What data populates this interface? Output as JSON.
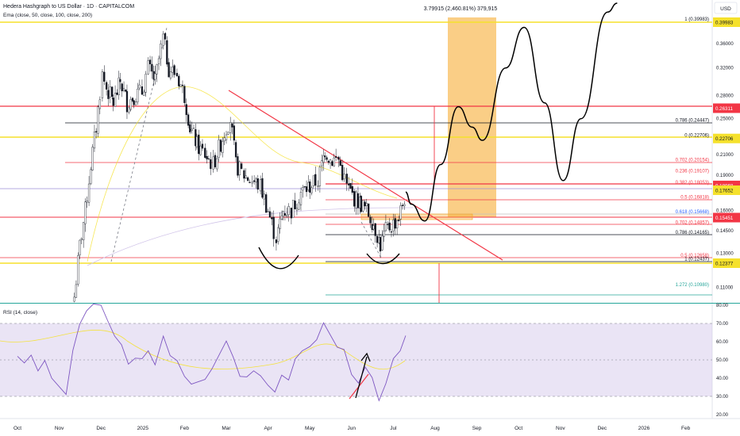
{
  "header": {
    "title": "Hedera Hashgraph to US Dollar · 1D · CAPITALCOM",
    "indicator": "Ema (close, 50, close, 100, close, 200)",
    "rsi_label": "RSI (14, close)",
    "currency": "USD",
    "measure_label": "3.79915 (2,460.81%) 379,915"
  },
  "colors": {
    "candle_up": "#26a69a",
    "candle_down": "#ef5350",
    "red_level": "#f23645",
    "yellow_level": "#f5e12c",
    "fib_gray": "#787b86",
    "projection_box": "#f5a623",
    "rsi_line": "#7e57c2",
    "rsi_band": "#d1c4e9"
  },
  "chart_data": [
    {
      "type": "candlestick",
      "title": "Hedera Hashgraph to US Dollar · 1D · CAPITALCOM",
      "y_scale": "log",
      "ylim": [
        0.1,
        0.5
      ],
      "y_ticks": [
        "0.36000",
        "0.32000",
        "0.28000",
        "0.25000",
        "0.23000",
        "0.21000",
        "0.19000",
        "0.16000",
        "0.14500",
        "0.13000",
        "0.11000"
      ],
      "x_ticks": [
        "Oct",
        "Nov",
        "Dec",
        "2025",
        "Feb",
        "Mar",
        "Apr",
        "May",
        "Jun",
        "Jul",
        "Aug",
        "Sep",
        "Oct",
        "Nov",
        "Dec",
        "2026",
        "Feb"
      ],
      "close_series": [
        [
          "Nov 12",
          0.105
        ],
        [
          "Nov 16",
          0.135
        ],
        [
          "Nov 20",
          0.16
        ],
        [
          "Nov 24",
          0.2
        ],
        [
          "Nov 28",
          0.24
        ],
        [
          "Dec 2",
          0.31
        ],
        [
          "Dec 5",
          0.29
        ],
        [
          "Dec 10",
          0.27
        ],
        [
          "Dec 15",
          0.3
        ],
        [
          "Dec 20",
          0.27
        ],
        [
          "Dec 25",
          0.28
        ],
        [
          "Dec 31",
          0.285
        ],
        [
          "Jan 5",
          0.32
        ],
        [
          "Jan 10",
          0.3
        ],
        [
          "Jan 16",
          0.37
        ],
        [
          "Jan 20",
          0.32
        ],
        [
          "Jan 26",
          0.31
        ],
        [
          "Feb 1",
          0.28
        ],
        [
          "Feb 5",
          0.24
        ],
        [
          "Feb 10",
          0.22
        ],
        [
          "Feb 16",
          0.21
        ],
        [
          "Feb 22",
          0.2
        ],
        [
          "Mar 1",
          0.24
        ],
        [
          "Mar 4",
          0.25
        ],
        [
          "Mar 8",
          0.2
        ],
        [
          "Mar 14",
          0.19
        ],
        [
          "Mar 20",
          0.185
        ],
        [
          "Mar 26",
          0.18
        ],
        [
          "Apr 1",
          0.16
        ],
        [
          "Apr 7",
          0.14
        ],
        [
          "Apr 12",
          0.16
        ],
        [
          "Apr 18",
          0.16
        ],
        [
          "Apr 25",
          0.175
        ],
        [
          "May 1",
          0.18
        ],
        [
          "May 7",
          0.185
        ],
        [
          "May 12",
          0.215
        ],
        [
          "May 16",
          0.205
        ],
        [
          "May 22",
          0.205
        ],
        [
          "May 28",
          0.18
        ],
        [
          "Jun 3",
          0.17
        ],
        [
          "Jun 8",
          0.165
        ],
        [
          "Jun 12",
          0.16
        ],
        [
          "Jun 17",
          0.15
        ],
        [
          "Jun 22",
          0.135
        ],
        [
          "Jun 26",
          0.145
        ],
        [
          "Jul 1",
          0.15
        ],
        [
          "Jul 5",
          0.155
        ],
        [
          "Jul 10",
          0.175
        ]
      ],
      "projection_path": [
        [
          "Jul 14",
          0.165
        ],
        [
          "Jul 24",
          0.152
        ],
        [
          "Aug 5",
          0.2
        ],
        [
          "Aug 18",
          0.265
        ],
        [
          "Aug 28",
          0.24
        ],
        [
          "Sep 5",
          0.225
        ],
        [
          "Sep 22",
          0.32
        ],
        [
          "Oct 5",
          0.39
        ],
        [
          "Oct 20",
          0.27
        ],
        [
          "Nov 3",
          0.185
        ],
        [
          "Nov 16",
          0.25
        ],
        [
          "Dec 5",
          0.42
        ],
        [
          "Dec 12",
          0.5
        ]
      ],
      "price_labels": [
        {
          "value": "0.39983",
          "style": "yellow"
        },
        {
          "value": "0.26311",
          "style": "red"
        },
        {
          "value": "0.22706",
          "style": "yellow"
        },
        {
          "value": "0.18068",
          "style": "red"
        },
        {
          "value": "0.17652",
          "style": "yellow"
        },
        {
          "value": "0.15451",
          "style": "red"
        },
        {
          "value": "0.12377",
          "style": "yellow"
        }
      ],
      "fib_labels": [
        {
          "text": "1 (0.39983)",
          "value": 0.39983
        },
        {
          "text": "0.786 (0.24447)",
          "value": 0.24447
        },
        {
          "text": "0 (0.22706)",
          "value": 0.22706
        },
        {
          "text": "0.702 (0.20154)",
          "value": 0.20154
        },
        {
          "text": "0.236 (0.19107)",
          "value": 0.19107
        },
        {
          "text": "0.382 (0.18053)",
          "value": 0.18053
        },
        {
          "text": "0.5 (0.16818)",
          "value": 0.16818
        },
        {
          "text": "0.618 (0.15668)",
          "value": 0.15668
        },
        {
          "text": "0.702 (0.14857)",
          "value": 0.14857
        },
        {
          "text": "0.786 (0.14165)",
          "value": 0.14165
        },
        {
          "text": "0.5 (0.12658)",
          "value": 0.12658
        },
        {
          "text": "1 (0.12437)",
          "value": 0.12437
        },
        {
          "text": "1.272 (0.10980)",
          "value": 0.1098
        }
      ],
      "annotations": [
        "3.79915 (2,460.81%) 379,915"
      ]
    },
    {
      "type": "line",
      "title": "RSI (14, close)",
      "ylim": [
        20,
        80
      ],
      "y_ticks": [
        "80.00",
        "70.00",
        "60.00",
        "50.00",
        "40.00",
        "30.00",
        "20.00"
      ],
      "bands": [
        30,
        70
      ],
      "series": [
        {
          "values": [
            [
              "Oct 1",
              52
            ],
            [
              "Oct 6",
              48
            ],
            [
              "Oct 11",
              53
            ],
            [
              "Oct 16",
              45
            ],
            [
              "Oct 21",
              49
            ],
            [
              "Oct 26",
              40
            ],
            [
              "Nov 1",
              36
            ],
            [
              "Nov 6",
              30
            ],
            [
              "Nov 11",
              55
            ],
            [
              "Nov 16",
              70
            ],
            [
              "Nov 21",
              78
            ],
            [
              "Nov 26",
              82
            ],
            [
              "Dec 1",
              80
            ],
            [
              "Dec 6",
              72
            ],
            [
              "Dec 11",
              62
            ],
            [
              "Dec 16",
              58
            ],
            [
              "Dec 21",
              48
            ],
            [
              "Dec 26",
              52
            ],
            [
              "Dec 31",
              50
            ],
            [
              "Jan 5",
              55
            ],
            [
              "Jan 10",
              48
            ],
            [
              "Jan 16",
              62
            ],
            [
              "Jan 21",
              52
            ],
            [
              "Jan 26",
              50
            ],
            [
              "Feb 1",
              42
            ],
            [
              "Feb 6",
              36
            ],
            [
              "Feb 11",
              38
            ],
            [
              "Feb 16",
              40
            ],
            [
              "Feb 21",
              44
            ],
            [
              "Mar 1",
              60
            ],
            [
              "Mar 6",
              52
            ],
            [
              "Mar 11",
              42
            ],
            [
              "Mar 16",
              40
            ],
            [
              "Mar 21",
              44
            ],
            [
              "Mar 26",
              42
            ],
            [
              "Apr 1",
              35
            ],
            [
              "Apr 6",
              32
            ],
            [
              "Apr 11",
              42
            ],
            [
              "Apr 16",
              40
            ],
            [
              "Apr 21",
              50
            ],
            [
              "Apr 26",
              55
            ],
            [
              "May 1",
              58
            ],
            [
              "May 6",
              60
            ],
            [
              "May 11",
              70
            ],
            [
              "May 16",
              64
            ],
            [
              "May 21",
              58
            ],
            [
              "May 26",
              55
            ],
            [
              "Jun 1",
              42
            ],
            [
              "Jun 6",
              38
            ],
            [
              "Jun 11",
              45
            ],
            [
              "Jun 16",
              40
            ],
            [
              "Jun 21",
              28
            ],
            [
              "Jun 26",
              38
            ],
            [
              "Jul 1",
              50
            ],
            [
              "Jul 6",
              55
            ],
            [
              "Jul 10",
              64
            ]
          ]
        }
      ]
    }
  ]
}
